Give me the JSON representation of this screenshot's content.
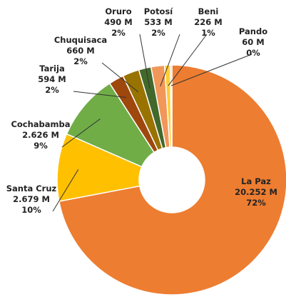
{
  "chart_data": {
    "type": "pie",
    "donut": true,
    "categories": [
      "La Paz",
      "Santa Cruz",
      "Cochabamba",
      "Tarija",
      "Chuquisaca",
      "Oruro",
      "Potosí",
      "Beni",
      "Pando"
    ],
    "values": [
      20252,
      2679,
      2626,
      594,
      660,
      490,
      533,
      226,
      60
    ],
    "value_labels": [
      "20.252 M",
      "2.679 M",
      "2.626 M",
      "594 M",
      "660 M",
      "490 M",
      "533 M",
      "226 M",
      "60 M"
    ],
    "percent_labels": [
      "72%",
      "10%",
      "9%",
      "2%",
      "2%",
      "2%",
      "2%",
      "1%",
      "0%"
    ],
    "colors": [
      "#ED7D31",
      "#FFC000",
      "#70AD47",
      "#9E480E",
      "#997300",
      "#43682B",
      "#F1975A",
      "#FFCD33",
      "#F4B183"
    ]
  }
}
